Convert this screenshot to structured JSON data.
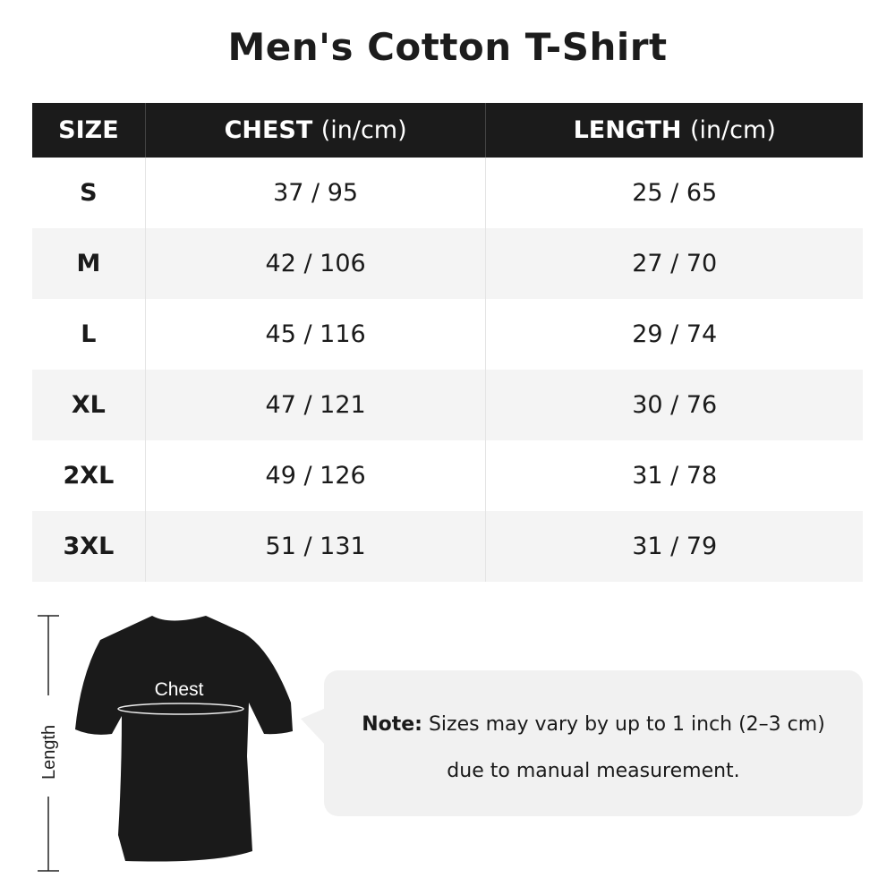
{
  "title": "Men's Cotton T-Shirt",
  "table": {
    "headers": [
      {
        "label": "SIZE",
        "unit": ""
      },
      {
        "label": "CHEST",
        "unit": "(in/cm)"
      },
      {
        "label": "LENGTH",
        "unit": "(in/cm)"
      }
    ],
    "rows": [
      [
        "S",
        "37 / 95",
        "25 / 65"
      ],
      [
        "M",
        "42 / 106",
        "27 / 70"
      ],
      [
        "L",
        "45 / 116",
        "29 / 74"
      ],
      [
        "XL",
        "47 / 121",
        "30 / 76"
      ],
      [
        "2XL",
        "49 / 126",
        "31 / 78"
      ],
      [
        "3XL",
        "51 / 131",
        "31 / 79"
      ]
    ]
  },
  "diagram": {
    "chest_label": "Chest",
    "length_label": "Length",
    "shirt_color": "#1a1a1a"
  },
  "note": {
    "prefix": "Note:",
    "line1": "Sizes may vary by up to 1 inch (2–3 cm)",
    "line2": "due to manual measurement."
  }
}
